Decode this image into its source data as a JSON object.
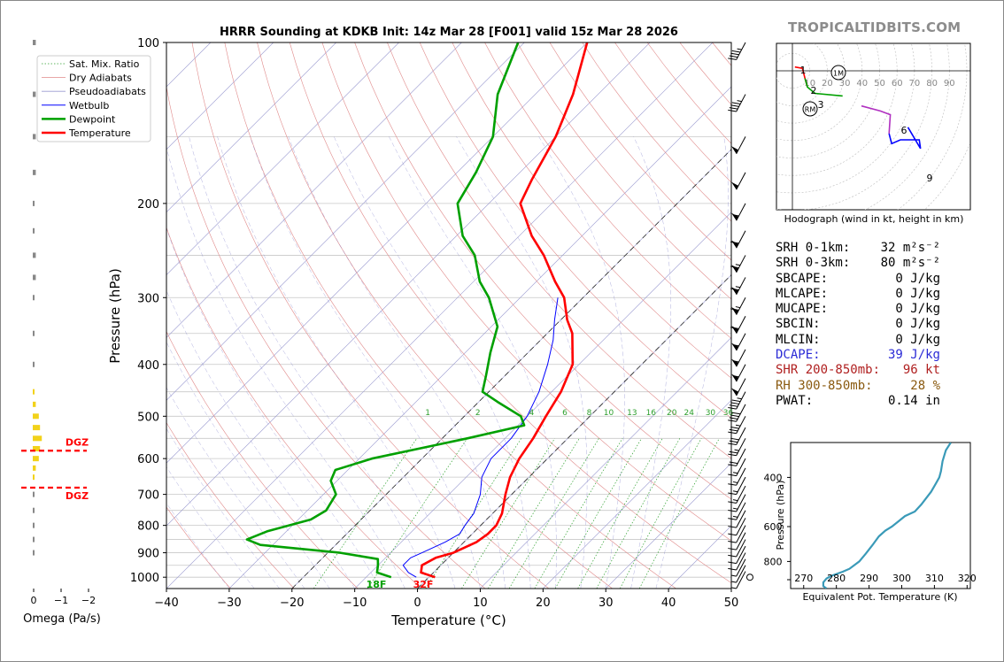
{
  "brand": "TROPICALTIDBITS.COM",
  "chart_data": [
    {
      "type": "skewt",
      "title": "HRRR Sounding at KDKB Init: 14z Mar 28 [F001] valid 15z Mar 28 2026",
      "xlabel": "Temperature (°C)",
      "ylabel": "Pressure (hPa)",
      "xlim": [
        -40,
        50
      ],
      "ylim": [
        1050,
        100
      ],
      "x_ticks": [
        "−40",
        "−30",
        "−20",
        "−10",
        "0",
        "10",
        "20",
        "30",
        "40",
        "50"
      ],
      "y_ticks": [
        "100",
        "200",
        "300",
        "400",
        "500",
        "600",
        "700",
        "800",
        "900",
        "1000"
      ],
      "legend": {
        "placement": "top-left",
        "entries": [
          "Sat. Mix. Ratio",
          "Dry Adiabats",
          "Pseudoadiabats",
          "Wetbulb",
          "Dewpoint",
          "Temperature"
        ]
      },
      "mixing_ratio_labels": [
        "1",
        "2",
        "4",
        "6",
        "8",
        "10",
        "13",
        "16",
        "20",
        "24",
        "30",
        "36"
      ],
      "surface_labels": {
        "dewpoint": "18F",
        "temperature": "32F"
      },
      "series": [
        {
          "name": "Temperature",
          "color": "#ff0000",
          "points": [
            [
              1000,
              1
            ],
            [
              980,
              -2
            ],
            [
              950,
              -3
            ],
            [
              920,
              -2
            ],
            [
              900,
              0
            ],
            [
              860,
              2
            ],
            [
              830,
              2.5
            ],
            [
              800,
              2.5
            ],
            [
              760,
              1.5
            ],
            [
              700,
              -1
            ],
            [
              650,
              -3
            ],
            [
              600,
              -4.5
            ],
            [
              550,
              -5.5
            ],
            [
              500,
              -7
            ],
            [
              450,
              -8.5
            ],
            [
              400,
              -11
            ],
            [
              350,
              -16
            ],
            [
              330,
              -19
            ],
            [
              300,
              -23
            ],
            [
              280,
              -27
            ],
            [
              250,
              -33
            ],
            [
              230,
              -38
            ],
            [
              200,
              -45
            ],
            [
              180,
              -47
            ],
            [
              150,
              -50
            ],
            [
              125,
              -54
            ],
            [
              100,
              -60
            ]
          ]
        },
        {
          "name": "Dewpoint",
          "color": "#00a000",
          "points": [
            [
              1000,
              -6
            ],
            [
              980,
              -9
            ],
            [
              950,
              -10
            ],
            [
              925,
              -11
            ],
            [
              900,
              -18
            ],
            [
              870,
              -32
            ],
            [
              850,
              -35
            ],
            [
              820,
              -33
            ],
            [
              780,
              -28
            ],
            [
              750,
              -27
            ],
            [
              700,
              -28
            ],
            [
              660,
              -31
            ],
            [
              630,
              -32
            ],
            [
              600,
              -28
            ],
            [
              550,
              -16
            ],
            [
              520,
              -9
            ],
            [
              500,
              -11
            ],
            [
              470,
              -17
            ],
            [
              450,
              -21
            ],
            [
              420,
              -23
            ],
            [
              380,
              -26
            ],
            [
              340,
              -29
            ],
            [
              300,
              -35
            ],
            [
              280,
              -39
            ],
            [
              250,
              -44
            ],
            [
              230,
              -49
            ],
            [
              200,
              -55
            ],
            [
              175,
              -57
            ],
            [
              150,
              -60
            ],
            [
              125,
              -66
            ],
            [
              100,
              -71
            ]
          ]
        },
        {
          "name": "Wetbulb",
          "color": "#0000ff",
          "points": [
            [
              1000,
              -2
            ],
            [
              980,
              -4
            ],
            [
              950,
              -6
            ],
            [
              920,
              -6
            ],
            [
              900,
              -5
            ],
            [
              860,
              -3
            ],
            [
              830,
              -2
            ],
            [
              800,
              -2.5
            ],
            [
              760,
              -3
            ],
            [
              700,
              -5
            ],
            [
              650,
              -7.5
            ],
            [
              600,
              -9
            ],
            [
              550,
              -9
            ],
            [
              500,
              -10
            ],
            [
              450,
              -12
            ],
            [
              400,
              -15
            ],
            [
              360,
              -18
            ],
            [
              330,
              -21
            ],
            [
              300,
              -24
            ]
          ]
        }
      ],
      "wind_barbs_kt": [
        [
          100,
          45
        ],
        [
          125,
          45
        ],
        [
          150,
          50
        ],
        [
          175,
          50
        ],
        [
          200,
          55
        ],
        [
          225,
          60
        ],
        [
          250,
          65
        ],
        [
          275,
          65
        ],
        [
          300,
          65
        ],
        [
          325,
          60
        ],
        [
          350,
          55
        ],
        [
          375,
          55
        ],
        [
          400,
          55
        ],
        [
          425,
          50
        ],
        [
          450,
          45
        ],
        [
          475,
          40
        ],
        [
          500,
          35
        ],
        [
          525,
          30
        ],
        [
          550,
          25
        ],
        [
          575,
          20
        ],
        [
          600,
          15
        ],
        [
          625,
          15
        ],
        [
          650,
          15
        ],
        [
          675,
          15
        ],
        [
          700,
          15
        ],
        [
          725,
          15
        ],
        [
          750,
          10
        ],
        [
          775,
          10
        ],
        [
          800,
          10
        ],
        [
          825,
          10
        ],
        [
          850,
          10
        ],
        [
          875,
          10
        ],
        [
          900,
          10
        ],
        [
          925,
          5
        ],
        [
          950,
          5
        ],
        [
          975,
          5
        ],
        [
          1000,
          0
        ]
      ]
    },
    {
      "type": "bar",
      "name": "omega",
      "xlabel": "Omega (Pa/s)",
      "x_ticks": [
        "0",
        "−1",
        "−2"
      ],
      "dgz_label": "DGZ",
      "dgz_bounds_hpa": [
        580,
        680
      ],
      "values_by_pressure": [
        [
          100,
          0.05
        ],
        [
          125,
          0.05
        ],
        [
          150,
          0.05
        ],
        [
          175,
          0.05
        ],
        [
          200,
          0.03
        ],
        [
          225,
          0.03
        ],
        [
          250,
          0.05
        ],
        [
          275,
          0.05
        ],
        [
          300,
          0.02
        ],
        [
          350,
          0.01
        ],
        [
          400,
          0.01
        ],
        [
          450,
          0.02
        ],
        [
          475,
          0.05
        ],
        [
          500,
          0.1
        ],
        [
          525,
          0.12
        ],
        [
          550,
          0.15
        ],
        [
          575,
          0.12
        ],
        [
          600,
          0.1
        ],
        [
          625,
          0.05
        ],
        [
          650,
          0.02
        ],
        [
          700,
          0.01
        ],
        [
          750,
          0.01
        ],
        [
          800,
          0.01
        ],
        [
          850,
          0.01
        ],
        [
          900,
          0.02
        ]
      ]
    },
    {
      "type": "hodograph",
      "caption": "Hodograph (wind in kt, height in km)",
      "ring_labels": [
        "10",
        "20",
        "30",
        "40",
        "50",
        "60",
        "70",
        "80",
        "90"
      ],
      "storm_motion_labels": [
        "1M",
        "RM"
      ],
      "height_labels": [
        "1",
        "2",
        "3",
        "6",
        "9"
      ],
      "points_uv": [
        [
          2,
          3
        ],
        [
          8,
          2
        ],
        [
          10,
          -6
        ],
        [
          12,
          -13
        ],
        [
          18,
          -18
        ],
        [
          40,
          -20
        ],
        [
          55,
          -28
        ],
        [
          70,
          -32
        ],
        [
          78,
          -35
        ],
        [
          77,
          -50
        ],
        [
          79,
          -58
        ],
        [
          86,
          -55
        ],
        [
          101,
          -55
        ],
        [
          102,
          -62
        ],
        [
          92,
          -45
        ]
      ]
    },
    {
      "type": "line",
      "name": "theta_e",
      "xlabel": "Equivalent Pot. Temperature (K)",
      "ylabel": "Pressure (hPa)",
      "x_ticks": [
        "270",
        "280",
        "290",
        "300",
        "310",
        "320"
      ],
      "y_ticks": [
        "400",
        "600",
        "800"
      ],
      "xlim": [
        266,
        321
      ],
      "ylim": [
        1000,
        300
      ],
      "color": "#3a9ab8",
      "points": [
        [
          1000,
          277
        ],
        [
          980,
          276
        ],
        [
          950,
          276
        ],
        [
          920,
          277
        ],
        [
          900,
          278.5
        ],
        [
          870,
          282
        ],
        [
          850,
          284
        ],
        [
          800,
          287
        ],
        [
          750,
          289
        ],
        [
          700,
          291
        ],
        [
          650,
          293
        ],
        [
          620,
          295
        ],
        [
          600,
          297
        ],
        [
          550,
          301
        ],
        [
          530,
          304
        ],
        [
          500,
          306
        ],
        [
          450,
          309
        ],
        [
          420,
          310.5
        ],
        [
          400,
          311.5
        ],
        [
          380,
          312
        ],
        [
          350,
          312.5
        ],
        [
          320,
          313.5
        ],
        [
          300,
          315
        ]
      ]
    }
  ],
  "params": [
    {
      "label": "SRH 0-1km:",
      "value": "32",
      "unit": "m²s⁻²",
      "color": "#000000"
    },
    {
      "label": "SRH 0-3km:",
      "value": "80",
      "unit": "m²s⁻²",
      "color": "#000000"
    },
    {
      "label": "SBCAPE:",
      "value": "0 J/kg",
      "unit": "",
      "color": "#000000"
    },
    {
      "label": "MLCAPE:",
      "value": "0 J/kg",
      "unit": "",
      "color": "#000000"
    },
    {
      "label": "MUCAPE:",
      "value": "0 J/kg",
      "unit": "",
      "color": "#000000"
    },
    {
      "label": "SBCIN:",
      "value": "0 J/kg",
      "unit": "",
      "color": "#000000"
    },
    {
      "label": "MLCIN:",
      "value": "0 J/kg",
      "unit": "",
      "color": "#000000"
    },
    {
      "label": "DCAPE:",
      "value": "39 J/kg",
      "unit": "",
      "color": "#2b2bd6"
    },
    {
      "label": "SHR 200-850mb:",
      "value": "96 kt",
      "unit": "",
      "color": "#b02020"
    },
    {
      "label": "RH 300-850mb:",
      "value": "28 %",
      "unit": "",
      "color": "#8a5a10"
    },
    {
      "label": "PWAT:",
      "value": "0.14 in",
      "unit": "",
      "color": "#000000"
    }
  ]
}
